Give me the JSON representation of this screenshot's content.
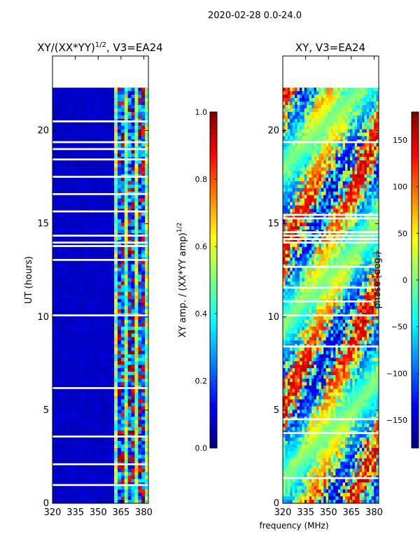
{
  "suptitle": "2020-02-28 0.0-24.0",
  "shared_xlabel": "frequency (MHz)",
  "chart_data": [
    {
      "type": "heatmap",
      "title": "XY/(XX*YY)",
      "title_exp": "1/2",
      "title_tail": ", V3=EA24",
      "xlabel": "",
      "ylabel": "UT (hours)",
      "xlim": [
        320,
        383
      ],
      "ylim": [
        0,
        24
      ],
      "xticks": [
        320,
        335,
        350,
        365,
        380
      ],
      "yticks": [
        0,
        5,
        10,
        15,
        20
      ],
      "data_ylim": [
        0,
        22.3
      ],
      "colormap": "jet",
      "colorbar": {
        "label": "XY amp. / (XX*YY amp)",
        "label_exp": "1/2",
        "range": [
          0.0,
          1.0
        ],
        "ticks": [
          "0.0",
          "0.2",
          "0.4",
          "0.6",
          "0.8",
          "1.0"
        ]
      }
    },
    {
      "type": "heatmap",
      "title": "XY, V3=EA24",
      "xlabel": "frequency (MHz)",
      "ylabel": "",
      "xlim": [
        320,
        383
      ],
      "ylim": [
        0,
        24
      ],
      "xticks": [
        320,
        335,
        350,
        365,
        380
      ],
      "yticks": [
        0,
        5,
        10,
        15,
        20
      ],
      "data_ylim": [
        0,
        22.3
      ],
      "colormap": "jet",
      "colorbar": {
        "label": "phase (deg.)",
        "range": [
          -180,
          180
        ],
        "ticks": [
          "-150",
          "-100",
          "-50",
          "0",
          "50",
          "100",
          "150"
        ]
      }
    }
  ]
}
